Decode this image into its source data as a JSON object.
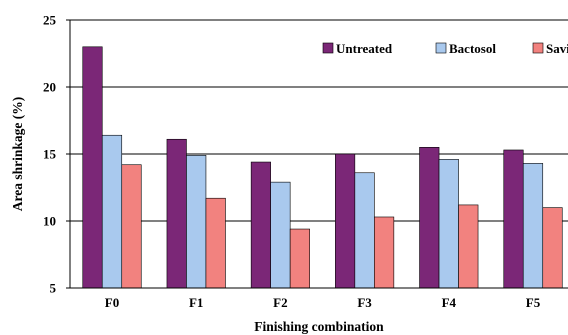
{
  "chart_data": {
    "type": "bar",
    "title": "",
    "xlabel": "Finishing combination",
    "ylabel": "Area shrinkage (%)",
    "categories": [
      "F0",
      "F1",
      "F2",
      "F3",
      "F4",
      "F5"
    ],
    "ylim": [
      5,
      25
    ],
    "yticks": [
      "5",
      "10",
      "15",
      "20",
      "25"
    ],
    "grid": true,
    "legend_position": "top-right",
    "series": [
      {
        "name": "Untreated",
        "color": "#7B2777",
        "values": [
          23.0,
          16.1,
          14.4,
          15.0,
          15.5,
          15.3
        ]
      },
      {
        "name": "Bactosol",
        "color": "#A9C9EE",
        "values": [
          16.4,
          14.9,
          12.9,
          13.6,
          14.6,
          14.3
        ]
      },
      {
        "name": "Savinase",
        "color": "#F2827F",
        "values": [
          14.2,
          11.7,
          9.4,
          10.3,
          11.2,
          11.0
        ]
      }
    ]
  }
}
